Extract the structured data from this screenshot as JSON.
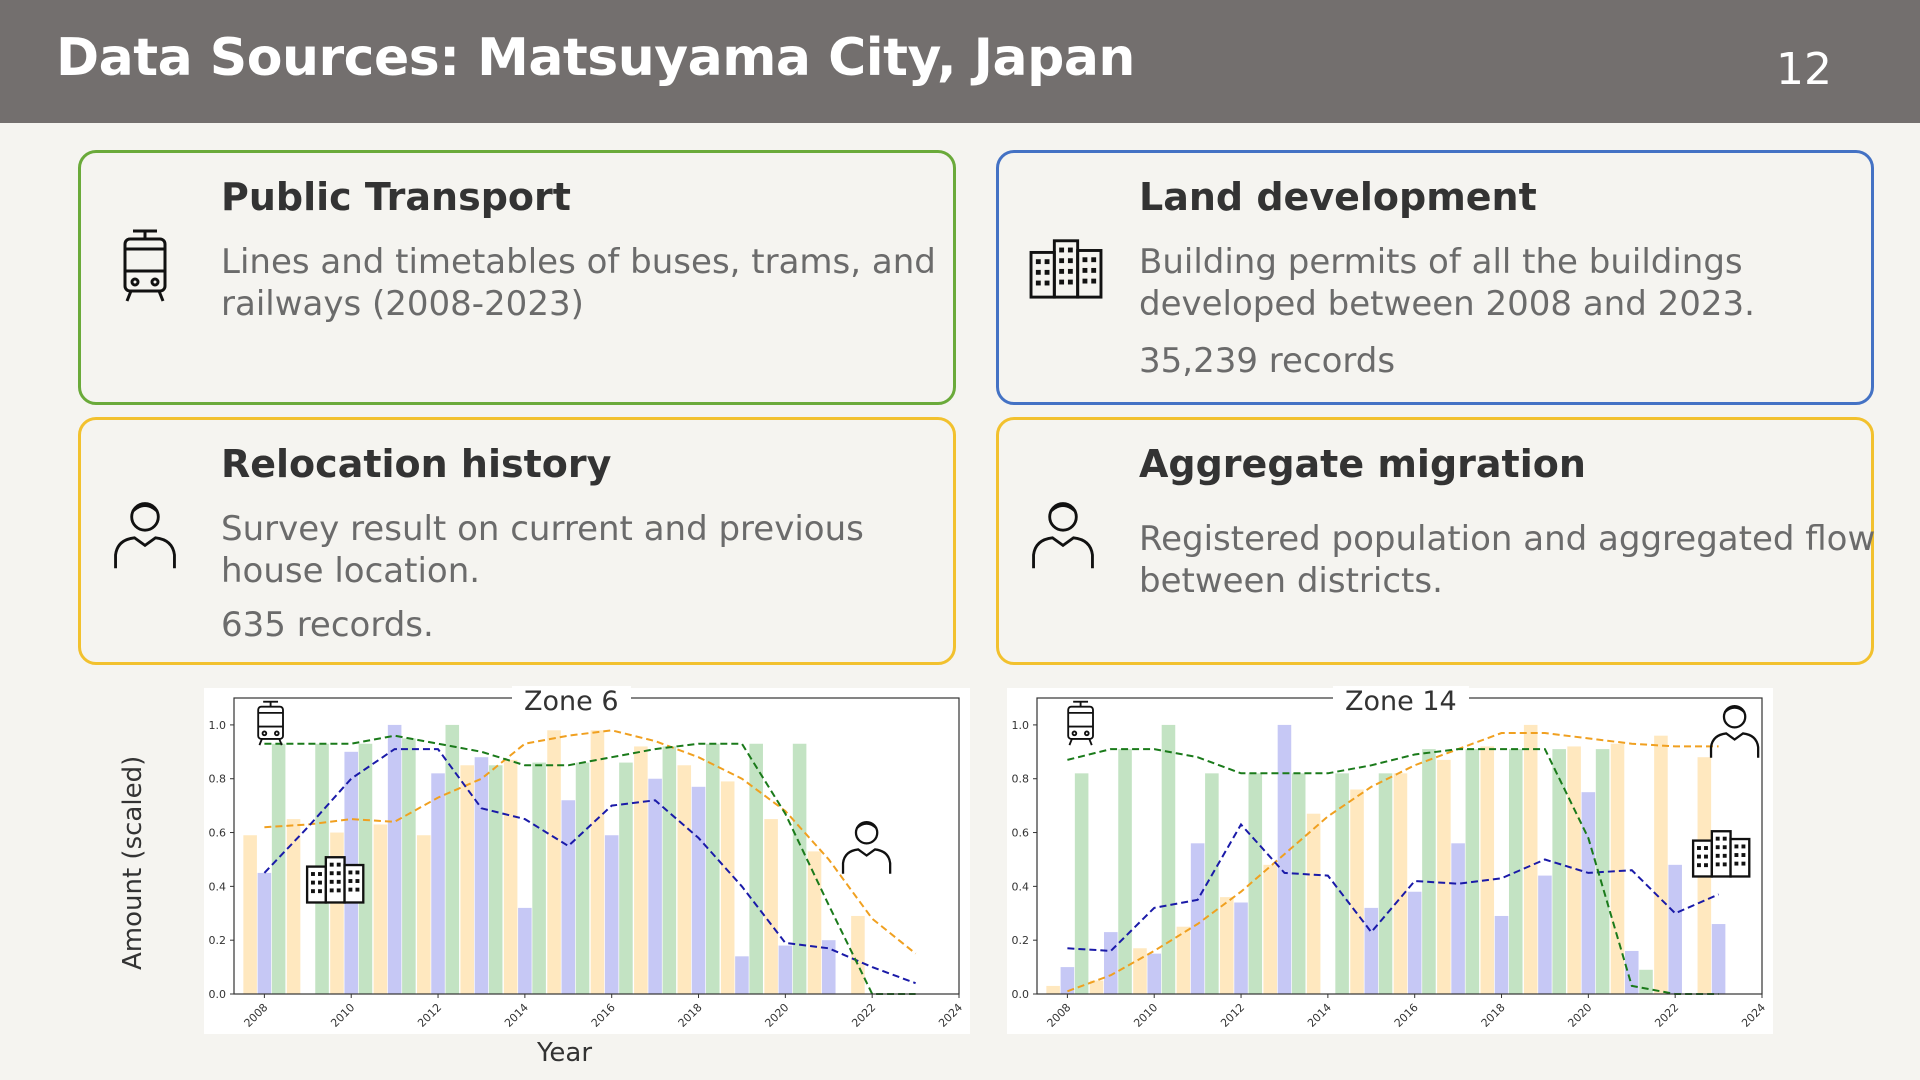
{
  "header": {
    "title": "Data Sources: Matsuyama City, Japan",
    "page_number": "12"
  },
  "cards": {
    "transport": {
      "title": "Public Transport",
      "desc": "Lines and timetables of buses, trams, and railways (2008-2023)",
      "color": "#6aaa3a",
      "icon": "tram-icon"
    },
    "land": {
      "title": "Land development",
      "desc": "Building permits of all the buildings developed between 2008 and 2023.",
      "records": "35,239 records",
      "color": "#4472c4",
      "icon": "buildings-icon"
    },
    "relocation": {
      "title": "Relocation history",
      "desc": "Survey result on current and previous house location.",
      "records": "635 records.",
      "color": "#f2c12e",
      "icon": "person-icon"
    },
    "migration": {
      "title": "Aggregate migration",
      "desc": "Registered population and aggregated flow between districts.",
      "color": "#f2c12e",
      "icon": "person-icon"
    }
  },
  "chart_common": {
    "ylabel": "Amount (scaled)",
    "xlabel": "Year"
  },
  "chart_data": [
    {
      "type": "bar",
      "title": "Zone 6",
      "x": [
        2008,
        2009,
        2010,
        2011,
        2012,
        2013,
        2014,
        2015,
        2016,
        2017,
        2018,
        2019,
        2020,
        2021,
        2022,
        2023
      ],
      "xticks": [
        "2008",
        "2010",
        "2012",
        "2014",
        "2016",
        "2018",
        "2020",
        "2022",
        "2024"
      ],
      "yticks": [
        "0.0",
        "0.2",
        "0.4",
        "0.6",
        "0.8",
        "1.0"
      ],
      "ylim": [
        0,
        1.1
      ],
      "xlim": [
        2007.3,
        2024
      ],
      "series": [
        {
          "kind": "bar",
          "color": "#ffe8bf",
          "values": [
            0.59,
            0.65,
            0.6,
            0.63,
            0.59,
            0.85,
            0.87,
            0.98,
            0.98,
            0.92,
            0.85,
            0.79,
            0.65,
            0.53,
            0.29,
            0.0
          ]
        },
        {
          "kind": "bar",
          "color": "#c6c8f5",
          "values": [
            0.45,
            0.0,
            0.9,
            1.0,
            0.82,
            0.88,
            0.32,
            0.72,
            0.59,
            0.8,
            0.77,
            0.14,
            0.18,
            0.2,
            0.0,
            0.0
          ]
        },
        {
          "kind": "bar",
          "color": "#c3e3c3",
          "values": [
            0.93,
            0.93,
            0.93,
            0.95,
            1.0,
            0.85,
            0.86,
            0.86,
            0.86,
            0.92,
            0.93,
            0.93,
            0.93,
            0.0,
            0.0,
            0.0
          ]
        },
        {
          "kind": "line",
          "color": "#f0a020",
          "values": [
            0.62,
            0.63,
            0.65,
            0.64,
            0.73,
            0.8,
            0.93,
            0.96,
            0.98,
            0.94,
            0.88,
            0.8,
            0.68,
            0.5,
            0.28,
            0.15
          ]
        },
        {
          "kind": "line",
          "color": "#1a1aa8",
          "values": [
            0.45,
            0.62,
            0.8,
            0.91,
            0.91,
            0.69,
            0.65,
            0.55,
            0.7,
            0.72,
            0.58,
            0.4,
            0.19,
            0.17,
            0.1,
            0.04
          ]
        },
        {
          "kind": "line",
          "color": "#1a7a1a",
          "values": [
            0.93,
            0.93,
            0.93,
            0.96,
            0.93,
            0.9,
            0.85,
            0.85,
            0.88,
            0.91,
            0.93,
            0.93,
            0.67,
            0.33,
            0.0,
            0.0
          ]
        }
      ]
    },
    {
      "type": "bar",
      "title": "Zone 14",
      "x": [
        2008,
        2009,
        2010,
        2011,
        2012,
        2013,
        2014,
        2015,
        2016,
        2017,
        2018,
        2019,
        2020,
        2021,
        2022,
        2023
      ],
      "xticks": [
        "2008",
        "2010",
        "2012",
        "2014",
        "2016",
        "2018",
        "2020",
        "2022",
        "2024"
      ],
      "yticks": [
        "0.0",
        "0.2",
        "0.4",
        "0.6",
        "0.8",
        "1.0"
      ],
      "ylim": [
        0,
        1.1
      ],
      "xlim": [
        2007.3,
        2024
      ],
      "series": [
        {
          "kind": "bar",
          "color": "#ffe8bf",
          "values": [
            0.03,
            0.05,
            0.17,
            0.25,
            0.36,
            0.48,
            0.67,
            0.76,
            0.82,
            0.87,
            0.92,
            1.0,
            0.92,
            0.93,
            0.96,
            0.88
          ]
        },
        {
          "kind": "bar",
          "color": "#c6c8f5",
          "values": [
            0.1,
            0.23,
            0.15,
            0.56,
            0.34,
            1.0,
            0.0,
            0.32,
            0.38,
            0.56,
            0.29,
            0.44,
            0.75,
            0.16,
            0.48,
            0.26
          ]
        },
        {
          "kind": "bar",
          "color": "#c3e3c3",
          "values": [
            0.82,
            0.91,
            1.0,
            0.82,
            0.82,
            0.82,
            0.82,
            0.82,
            0.91,
            0.91,
            0.91,
            0.91,
            0.91,
            0.09,
            0.0,
            0.0
          ]
        },
        {
          "kind": "line",
          "color": "#f0a020",
          "values": [
            0.01,
            0.07,
            0.16,
            0.26,
            0.38,
            0.52,
            0.66,
            0.77,
            0.85,
            0.91,
            0.97,
            0.97,
            0.95,
            0.93,
            0.92,
            0.92
          ]
        },
        {
          "kind": "line",
          "color": "#1a1aa8",
          "values": [
            0.17,
            0.16,
            0.32,
            0.35,
            0.63,
            0.45,
            0.44,
            0.23,
            0.42,
            0.41,
            0.43,
            0.5,
            0.45,
            0.46,
            0.3,
            0.37
          ]
        },
        {
          "kind": "line",
          "color": "#1a7a1a",
          "values": [
            0.87,
            0.91,
            0.91,
            0.88,
            0.82,
            0.82,
            0.82,
            0.85,
            0.89,
            0.91,
            0.91,
            0.91,
            0.58,
            0.03,
            0.0,
            0.0
          ]
        }
      ]
    }
  ]
}
